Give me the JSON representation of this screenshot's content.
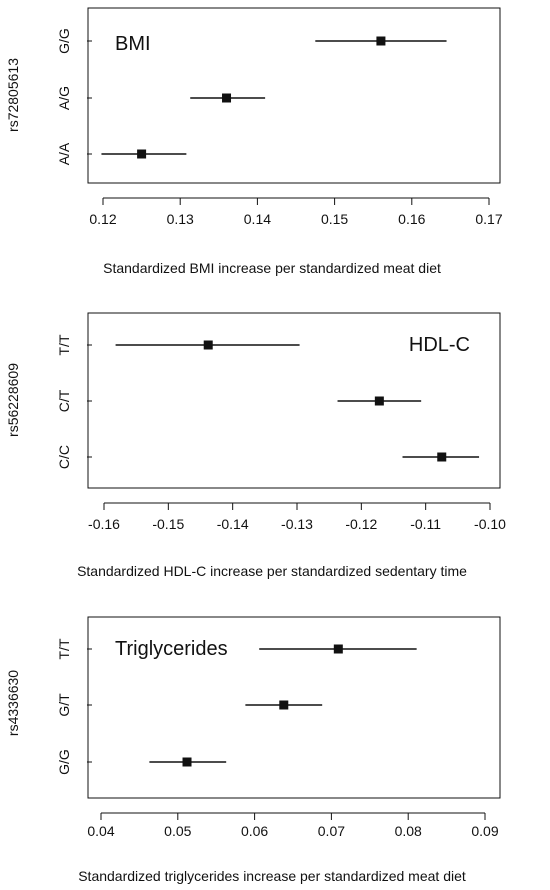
{
  "chart_data": [
    {
      "type": "forest",
      "annotation": "BMI",
      "ylabel": "rs72805613",
      "xlabel": "Standardized BMI increase per standardized meat diet",
      "xlim": [
        0.12,
        0.17
      ],
      "xticks": [
        0.12,
        0.13,
        0.14,
        0.15,
        0.16,
        0.17
      ],
      "xtick_labels": [
        "0.12",
        "0.13",
        "0.14",
        "0.15",
        "0.16",
        "0.17"
      ],
      "annotation_position": "top-left",
      "grid": false,
      "categories": [
        "G/G",
        "A/G",
        "A/A"
      ],
      "points": [
        {
          "genotype": "G/G",
          "estimate": 0.156,
          "lower": 0.1475,
          "upper": 0.1645
        },
        {
          "genotype": "A/G",
          "estimate": 0.136,
          "lower": 0.1313,
          "upper": 0.141
        },
        {
          "genotype": "A/A",
          "estimate": 0.125,
          "lower": 0.1198,
          "upper": 0.1308
        }
      ]
    },
    {
      "type": "forest",
      "annotation": "HDL-C",
      "ylabel": "rs56228609",
      "xlabel": "Standardized HDL-C increase per standardized sedentary time",
      "xlim": [
        -0.16,
        -0.1
      ],
      "xticks": [
        -0.16,
        -0.15,
        -0.14,
        -0.13,
        -0.12,
        -0.11,
        -0.1
      ],
      "xtick_labels": [
        "-0.16",
        "-0.15",
        "-0.14",
        "-0.13",
        "-0.12",
        "-0.11",
        "-0.10"
      ],
      "annotation_position": "top-right",
      "grid": false,
      "categories": [
        "T/T",
        "C/T",
        "C/C"
      ],
      "points": [
        {
          "genotype": "T/T",
          "estimate": -0.1438,
          "lower": -0.1582,
          "upper": -0.1296
        },
        {
          "genotype": "C/T",
          "estimate": -0.1172,
          "lower": -0.1237,
          "upper": -0.1107
        },
        {
          "genotype": "C/C",
          "estimate": -0.1075,
          "lower": -0.1136,
          "upper": -0.1017
        }
      ]
    },
    {
      "type": "forest",
      "annotation": "Triglycerides",
      "ylabel": "rs4336630",
      "xlabel": "Standardized triglycerides increase per standardized meat diet",
      "xlim": [
        0.04,
        0.09
      ],
      "xticks": [
        0.04,
        0.05,
        0.06,
        0.07,
        0.08,
        0.09
      ],
      "xtick_labels": [
        "0.04",
        "0.05",
        "0.06",
        "0.07",
        "0.08",
        "0.09"
      ],
      "annotation_position": "top-left",
      "grid": false,
      "categories": [
        "T/T",
        "G/T",
        "G/G"
      ],
      "points": [
        {
          "genotype": "T/T",
          "estimate": 0.0709,
          "lower": 0.0606,
          "upper": 0.0811
        },
        {
          "genotype": "G/T",
          "estimate": 0.0638,
          "lower": 0.0588,
          "upper": 0.0688
        },
        {
          "genotype": "G/G",
          "estimate": 0.0512,
          "lower": 0.0463,
          "upper": 0.0563
        }
      ]
    }
  ]
}
